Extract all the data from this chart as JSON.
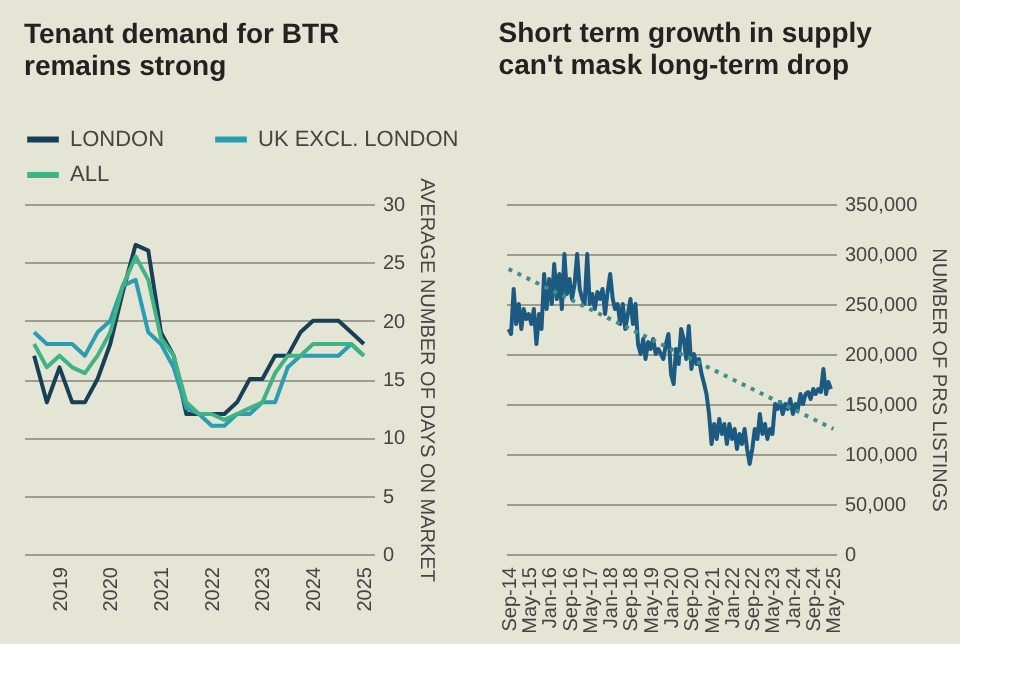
{
  "chart_data": [
    {
      "type": "line",
      "title": "Tenant demand for BTR remains strong",
      "ylabel": "AVERAGE NUMBER OF DAYS ON MARKET",
      "x": [
        2018.5,
        2018.75,
        2019.0,
        2019.25,
        2019.5,
        2019.75,
        2020.0,
        2020.25,
        2020.5,
        2020.75,
        2021.0,
        2021.25,
        2021.5,
        2021.75,
        2022.0,
        2022.25,
        2022.5,
        2022.75,
        2023.0,
        2023.25,
        2023.5,
        2023.75,
        2024.0,
        2024.25,
        2024.5,
        2024.75,
        2025.0
      ],
      "series": [
        {
          "name": "LONDON",
          "color": "#173f58",
          "values": [
            17,
            13,
            16,
            13,
            13,
            15,
            18,
            22.5,
            26.5,
            26,
            19,
            17,
            12,
            12,
            12,
            12,
            13,
            15,
            15,
            17,
            17,
            19,
            20,
            20,
            20,
            19,
            18
          ]
        },
        {
          "name": "UK EXCL. LONDON",
          "color": "#2a9db3",
          "values": [
            19,
            18,
            18,
            18,
            17,
            19,
            20,
            23,
            23.5,
            19,
            18,
            16,
            12.5,
            12,
            11,
            11,
            12,
            12,
            13,
            13,
            16,
            17,
            17,
            17,
            17,
            18,
            17
          ]
        },
        {
          "name": "ALL",
          "color": "#3fb383",
          "values": [
            18,
            16,
            17,
            16,
            15.5,
            17,
            19,
            23,
            25.5,
            23.5,
            18.5,
            17,
            13,
            12,
            12,
            11.5,
            12,
            12.5,
            13,
            15.5,
            17,
            17,
            18,
            18,
            18,
            18,
            17
          ]
        }
      ],
      "xlim": [
        2018.3,
        2025.2
      ],
      "xticks": [
        2019,
        2020,
        2021,
        2022,
        2023,
        2024,
        2025
      ],
      "ylim": [
        0,
        30
      ],
      "yticks": [
        0,
        5,
        10,
        15,
        20,
        25,
        30
      ],
      "grid": "y",
      "legend": "top"
    },
    {
      "type": "line",
      "title": "Short term growth in supply can't mask long-term drop",
      "ylabel": "NUMBER OF PRS LISTINGS",
      "x": [
        "2014-09",
        "2014-10",
        "2014-11",
        "2014-12",
        "2015-01",
        "2015-02",
        "2015-03",
        "2015-04",
        "2015-05",
        "2015-06",
        "2015-07",
        "2015-08",
        "2015-09",
        "2015-10",
        "2015-11",
        "2015-12",
        "2016-01",
        "2016-02",
        "2016-03",
        "2016-04",
        "2016-05",
        "2016-06",
        "2016-07",
        "2016-08",
        "2016-09",
        "2016-10",
        "2016-11",
        "2016-12",
        "2017-01",
        "2017-02",
        "2017-03",
        "2017-04",
        "2017-05",
        "2017-06",
        "2017-07",
        "2017-08",
        "2017-09",
        "2017-10",
        "2017-11",
        "2017-12",
        "2018-01",
        "2018-02",
        "2018-03",
        "2018-04",
        "2018-05",
        "2018-06",
        "2018-07",
        "2018-08",
        "2018-09",
        "2018-10",
        "2018-11",
        "2018-12",
        "2019-01",
        "2019-02",
        "2019-03",
        "2019-04",
        "2019-05",
        "2019-06",
        "2019-07",
        "2019-08",
        "2019-09",
        "2019-10",
        "2019-11",
        "2019-12",
        "2020-01",
        "2020-02",
        "2020-03",
        "2020-04",
        "2020-05",
        "2020-06",
        "2020-07",
        "2020-08",
        "2020-09",
        "2020-10",
        "2020-11",
        "2020-12",
        "2021-01",
        "2021-02",
        "2021-03",
        "2021-04",
        "2021-05",
        "2021-06",
        "2021-07",
        "2021-08",
        "2021-09",
        "2021-10",
        "2021-11",
        "2021-12",
        "2022-01",
        "2022-02",
        "2022-03",
        "2022-04",
        "2022-05",
        "2022-06",
        "2022-07",
        "2022-08",
        "2022-09",
        "2022-10",
        "2022-11",
        "2022-12",
        "2023-01",
        "2023-02",
        "2023-03",
        "2023-04",
        "2023-05",
        "2023-06",
        "2023-07",
        "2023-08",
        "2023-09",
        "2023-10",
        "2023-11",
        "2023-12",
        "2024-01",
        "2024-02",
        "2024-03",
        "2024-04",
        "2024-05",
        "2024-06",
        "2024-07",
        "2024-08",
        "2024-09",
        "2024-10",
        "2024-11",
        "2024-12",
        "2025-01",
        "2025-02",
        "2025-03",
        "2025-04"
      ],
      "series": [
        {
          "color": "#1d5a82",
          "values": [
            225000,
            220000,
            265000,
            230000,
            250000,
            225000,
            245000,
            235000,
            240000,
            230000,
            245000,
            210000,
            240000,
            225000,
            280000,
            245000,
            275000,
            250000,
            290000,
            255000,
            280000,
            245000,
            300000,
            260000,
            275000,
            255000,
            270000,
            300000,
            265000,
            255000,
            250000,
            300000,
            250000,
            260000,
            245000,
            262000,
            255000,
            265000,
            240000,
            262000,
            280000,
            255000,
            245000,
            250000,
            230000,
            250000,
            225000,
            240000,
            255000,
            230000,
            250000,
            210000,
            200000,
            215000,
            195000,
            212000,
            205000,
            215000,
            200000,
            205000,
            200000,
            195000,
            210000,
            220000,
            180000,
            170000,
            205000,
            190000,
            225000,
            215000,
            195000,
            228000,
            185000,
            200000,
            190000,
            195000,
            180000,
            170000,
            160000,
            140000,
            110000,
            130000,
            115000,
            135000,
            120000,
            130000,
            110000,
            130000,
            115000,
            125000,
            105000,
            120000,
            110000,
            125000,
            105000,
            90000,
            105000,
            125000,
            115000,
            140000,
            120000,
            130000,
            115000,
            125000,
            120000,
            150000,
            145000,
            152000,
            140000,
            150000,
            145000,
            155000,
            140000,
            150000,
            145000,
            160000,
            150000,
            160000,
            162000,
            155000,
            165000,
            160000,
            165000,
            162000,
            185000,
            160000,
            172000,
            165000
          ]
        },
        {
          "type": "line",
          "line_style": "dotted",
          "color": "#3e8f8c",
          "x": [
            "2014-09",
            "2025-05"
          ],
          "values": [
            285000,
            125000
          ]
        }
      ],
      "xlim": [
        "2014-08",
        "2025-06"
      ],
      "xticks": [
        {
          "value": "2014-09",
          "label": "Sep-14"
        },
        {
          "value": "2015-05",
          "label": "May-15"
        },
        {
          "value": "2016-01",
          "label": "Jan-16"
        },
        {
          "value": "2016-09",
          "label": "Sep-16"
        },
        {
          "value": "2017-05",
          "label": "May-17"
        },
        {
          "value": "2018-01",
          "label": "Jan-18"
        },
        {
          "value": "2018-09",
          "label": "Sep-18"
        },
        {
          "value": "2019-05",
          "label": "May-19"
        },
        {
          "value": "2020-01",
          "label": "Jan-20"
        },
        {
          "value": "2020-09",
          "label": "Sep-20"
        },
        {
          "value": "2021-05",
          "label": "May-21"
        },
        {
          "value": "2022-01",
          "label": "Jan-22"
        },
        {
          "value": "2022-09",
          "label": "Sep-22"
        },
        {
          "value": "2023-05",
          "label": "May-23"
        },
        {
          "value": "2024-01",
          "label": "Jan-24"
        },
        {
          "value": "2024-09",
          "label": "Sep-24"
        },
        {
          "value": "2025-05",
          "label": "May-25"
        }
      ],
      "ylim": [
        0,
        350000
      ],
      "yticks": [
        0,
        {
          "value": 50000,
          "label": "50,000"
        },
        {
          "value": 100000,
          "label": "100,000"
        },
        {
          "value": 150000,
          "label": "150,000"
        },
        {
          "value": 200000,
          "label": "200,000"
        },
        {
          "value": 250000,
          "label": "250,000"
        },
        {
          "value": 300000,
          "label": "300,000"
        },
        {
          "value": 350000,
          "label": "350,000"
        }
      ],
      "grid": "y"
    }
  ]
}
